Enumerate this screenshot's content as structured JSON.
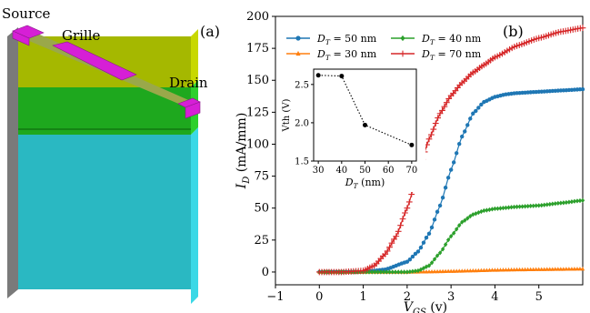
{
  "panel_a": {
    "panel_label": "(a)",
    "labels": {
      "source": "Source",
      "grille": "Grille",
      "drain": "Drain"
    },
    "colors": {
      "layer_top": "#a5b800",
      "layer_mid": "#1ea81e",
      "layer_bottom": "#2ab8c2",
      "contact": "#d61fd6",
      "left_face": "#8a8a8a"
    }
  },
  "panel_b": {
    "panel_label": "(b)"
  },
  "chart_data": [
    {
      "type": "line",
      "xlabel": "V_GS (v)",
      "ylabel": "I_D (mA/mm)",
      "xlim": [
        -1,
        6
      ],
      "ylim": [
        -10,
        200
      ],
      "xticks": [
        "−1",
        "0",
        "1",
        "2",
        "3",
        "4",
        "5"
      ],
      "yticks": [
        "0",
        "25",
        "50",
        "75",
        "100",
        "125",
        "150",
        "175",
        "200"
      ],
      "legend_position": "top",
      "series": [
        {
          "name": "D_T = 50 nm",
          "color": "#1f77b4",
          "marker": "o",
          "x": [
            0,
            0.5,
            1,
            1.5,
            2,
            2.25,
            2.5,
            2.75,
            3,
            3.25,
            3.5,
            3.75,
            4,
            4.25,
            4.5,
            5,
            5.5,
            6
          ],
          "y": [
            0,
            0,
            0,
            2,
            8,
            16,
            30,
            52,
            80,
            106,
            124,
            133,
            137,
            139,
            140,
            141,
            142,
            143
          ]
        },
        {
          "name": "D_T = 30 nm",
          "color": "#ff7f0e",
          "marker": "^",
          "x": [
            0,
            1,
            2,
            2.5,
            3,
            3.5,
            4,
            4.5,
            5,
            5.5,
            6
          ],
          "y": [
            0,
            0,
            0,
            0.2,
            0.6,
            1,
            1.5,
            1.8,
            2,
            2.2,
            2.4
          ]
        },
        {
          "name": "D_T = 40 nm",
          "color": "#2ca02c",
          "marker": "D",
          "x": [
            0,
            1,
            2,
            2.25,
            2.5,
            2.75,
            3,
            3.25,
            3.5,
            3.75,
            4,
            4.5,
            5,
            5.5,
            6
          ],
          "y": [
            0,
            0,
            0,
            1,
            5,
            15,
            28,
            39,
            45,
            48,
            49.5,
            51,
            52,
            54,
            56
          ]
        },
        {
          "name": "D_T = 70 nm",
          "color": "#d62728",
          "marker": "+",
          "x": [
            0,
            0.5,
            1,
            1.25,
            1.5,
            1.75,
            2,
            2.25,
            2.5,
            2.75,
            3,
            3.25,
            3.5,
            3.75,
            4,
            4.5,
            5,
            5.5,
            6
          ],
          "y": [
            0,
            0,
            1,
            5,
            14,
            28,
            50,
            78,
            104,
            124,
            138,
            148,
            156,
            162,
            168,
            177,
            183,
            188,
            191
          ]
        }
      ]
    },
    {
      "type": "line",
      "xlabel": "D_T (nm)",
      "ylabel": "Vth (V)",
      "xlim": [
        28,
        72
      ],
      "ylim": [
        1.5,
        2.7
      ],
      "xticks": [
        "30",
        "40",
        "50",
        "60",
        "70"
      ],
      "yticks": [
        "1.5",
        "2.0",
        "2.5"
      ],
      "series": [
        {
          "color": "#000000",
          "marker": "o",
          "linestyle": "dotted",
          "x": [
            30,
            40,
            50,
            70
          ],
          "y": [
            2.62,
            2.61,
            1.97,
            1.71
          ]
        }
      ]
    }
  ]
}
